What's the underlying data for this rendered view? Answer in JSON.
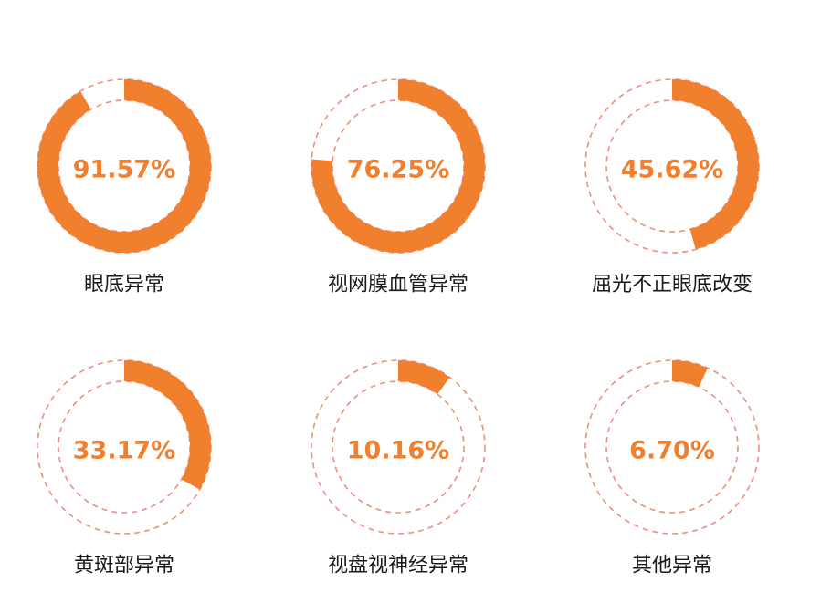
{
  "colors": {
    "accent": "#F07F2E",
    "track_dash": "#EE8D7F",
    "label": "#1a1a1a"
  },
  "chart_data": {
    "type": "pie",
    "variant": "donut-progress-grid",
    "unit": "%",
    "items": [
      {
        "label": "眼底异常",
        "value": 91.57,
        "value_label": "91.57%"
      },
      {
        "label": "视网膜血管异常",
        "value": 76.25,
        "value_label": "76.25%"
      },
      {
        "label": "屈光不正眼底改变",
        "value": 45.62,
        "value_label": "45.62%"
      },
      {
        "label": "黄斑部异常",
        "value": 33.17,
        "value_label": "33.17%"
      },
      {
        "label": "视盘视神经异常",
        "value": 10.16,
        "value_label": "10.16%"
      },
      {
        "label": "其他异常",
        "value": 6.7,
        "value_label": "6.70%"
      }
    ]
  }
}
